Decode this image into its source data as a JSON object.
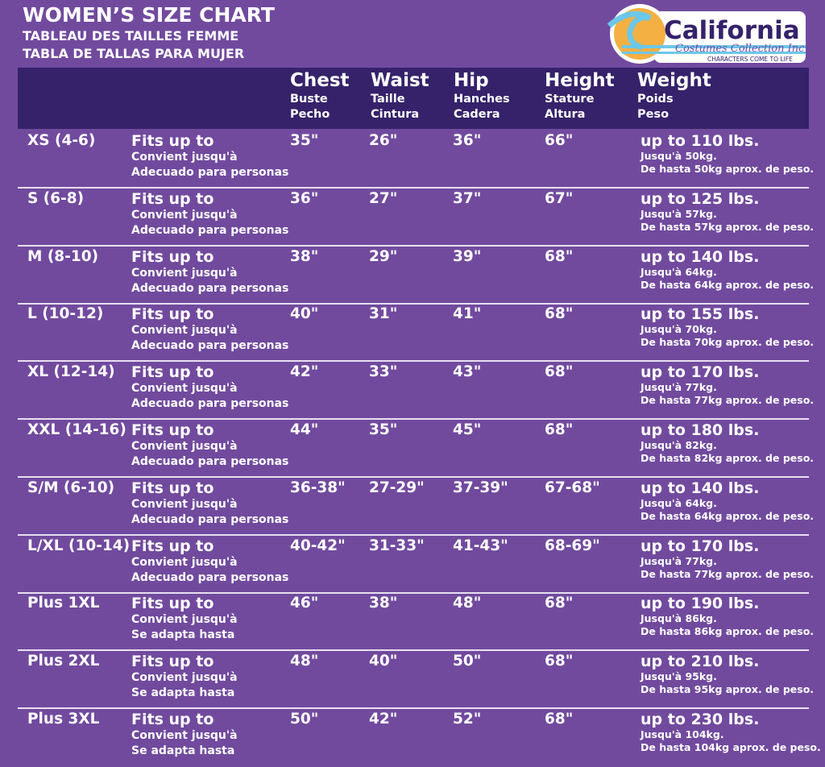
{
  "title": "WOMEN’S SIZE CHART",
  "subtitle_fr": "TABLEAU DES TAILLES FEMME",
  "subtitle_es": "TABLA DE TALLAS PARA MUJER",
  "logo": {
    "name": "California",
    "script": "Costumes Collection Inc",
    "tagline": "CHARACTERS COME TO LIFE"
  },
  "colors": {
    "background": "#714a9e",
    "header_band": "#35226a",
    "logo_sun": "#f4b042",
    "logo_wave": "#6cc7e8"
  },
  "columns": [
    {
      "main": "Chest",
      "fr": "Buste",
      "es": "Pecho"
    },
    {
      "main": "Waist",
      "fr": "Taille",
      "es": "Cintura"
    },
    {
      "main": "Hip",
      "fr": "Hanches",
      "es": "Cadera"
    },
    {
      "main": "Height",
      "fr": "Stature",
      "es": "Altura"
    },
    {
      "main": "Weight",
      "fr": "Poids",
      "es": "Peso"
    }
  ],
  "rows": [
    {
      "size": "XS (4-6)",
      "fit": "Fits up to",
      "fit_fr": "Convient jusqu'à",
      "fit_es": "Adecuado para personas",
      "chest": "35\"",
      "waist": "26\"",
      "hip": "36\"",
      "height": "66\"",
      "weight": "up to 110 lbs.",
      "weight_fr": "Jusqu'à 50kg.",
      "weight_es": "De hasta 50kg aprox. de peso."
    },
    {
      "size": "S (6-8)",
      "fit": "Fits up to",
      "fit_fr": "Convient jusqu'à",
      "fit_es": "Adecuado para personas",
      "chest": "36\"",
      "waist": "27\"",
      "hip": "37\"",
      "height": "67\"",
      "weight": "up to 125 lbs.",
      "weight_fr": "Jusqu'à 57kg.",
      "weight_es": "De hasta 57kg aprox. de peso."
    },
    {
      "size": "M (8-10)",
      "fit": "Fits up to",
      "fit_fr": "Convient jusqu'à",
      "fit_es": "Adecuado para personas",
      "chest": "38\"",
      "waist": "29\"",
      "hip": "39\"",
      "height": "68\"",
      "weight": "up to 140 lbs.",
      "weight_fr": "Jusqu'à 64kg.",
      "weight_es": "De hasta 64kg aprox. de peso."
    },
    {
      "size": "L (10-12)",
      "fit": "Fits up to",
      "fit_fr": "Convient jusqu'à",
      "fit_es": "Adecuado para personas",
      "chest": "40\"",
      "waist": "31\"",
      "hip": "41\"",
      "height": "68\"",
      "weight": "up to 155 lbs.",
      "weight_fr": "Jusqu'à 70kg.",
      "weight_es": "De hasta 70kg aprox. de peso."
    },
    {
      "size": "XL (12-14)",
      "fit": "Fits up to",
      "fit_fr": "Convient jusqu'à",
      "fit_es": "Adecuado para personas",
      "chest": "42\"",
      "waist": "33\"",
      "hip": "43\"",
      "height": "68\"",
      "weight": "up to 170 lbs.",
      "weight_fr": "Jusqu'à 77kg.",
      "weight_es": "De hasta 77kg aprox. de peso."
    },
    {
      "size": "XXL (14-16)",
      "fit": "Fits up to",
      "fit_fr": "Convient jusqu'à",
      "fit_es": "Adecuado para personas",
      "chest": "44\"",
      "waist": "35\"",
      "hip": "45\"",
      "height": "68\"",
      "weight": "up to 180 lbs.",
      "weight_fr": "Jusqu'à 82kg.",
      "weight_es": "De hasta 82kg aprox. de peso."
    },
    {
      "size": "S/M (6-10)",
      "fit": "Fits up to",
      "fit_fr": "Convient jusqu'à",
      "fit_es": "Adecuado para personas",
      "chest": "36-38\"",
      "waist": "27-29\"",
      "hip": "37-39\"",
      "height": "67-68\"",
      "weight": "up to 140 lbs.",
      "weight_fr": "Jusqu'à 64kg.",
      "weight_es": "De hasta 64kg aprox. de peso."
    },
    {
      "size": "L/XL (10-14)",
      "fit": "Fits up to",
      "fit_fr": "Convient jusqu'à",
      "fit_es": "Adecuado para personas",
      "chest": "40-42\"",
      "waist": "31-33\"",
      "hip": "41-43\"",
      "height": "68-69\"",
      "weight": "up to 170 lbs.",
      "weight_fr": "Jusqu'à 77kg.",
      "weight_es": "De hasta 77kg aprox. de peso."
    },
    {
      "size": "Plus 1XL",
      "fit": "Fits up to",
      "fit_fr": "Convient jusqu'à",
      "fit_es": "Se adapta hasta",
      "chest": "46\"",
      "waist": "38\"",
      "hip": "48\"",
      "height": "68\"",
      "weight": "up to 190 lbs.",
      "weight_fr": "Jusqu'à 86kg.",
      "weight_es": "De hasta 86kg aprox. de peso."
    },
    {
      "size": "Plus 2XL",
      "fit": "Fits up to",
      "fit_fr": "Convient jusqu'à",
      "fit_es": "Se adapta hasta",
      "chest": "48\"",
      "waist": "40\"",
      "hip": "50\"",
      "height": "68\"",
      "weight": "up to 210 lbs.",
      "weight_fr": "Jusqu'à 95kg.",
      "weight_es": "De hasta 95kg aprox. de peso."
    },
    {
      "size": "Plus 3XL",
      "fit": "Fits up to",
      "fit_fr": "Convient jusqu'à",
      "fit_es": "Se adapta hasta",
      "chest": "50\"",
      "waist": "42\"",
      "hip": "52\"",
      "height": "68\"",
      "weight": "up to 230 lbs.",
      "weight_fr": "Jusqu'à 104kg.",
      "weight_es": "De hasta 104kg aprox. de peso."
    }
  ]
}
